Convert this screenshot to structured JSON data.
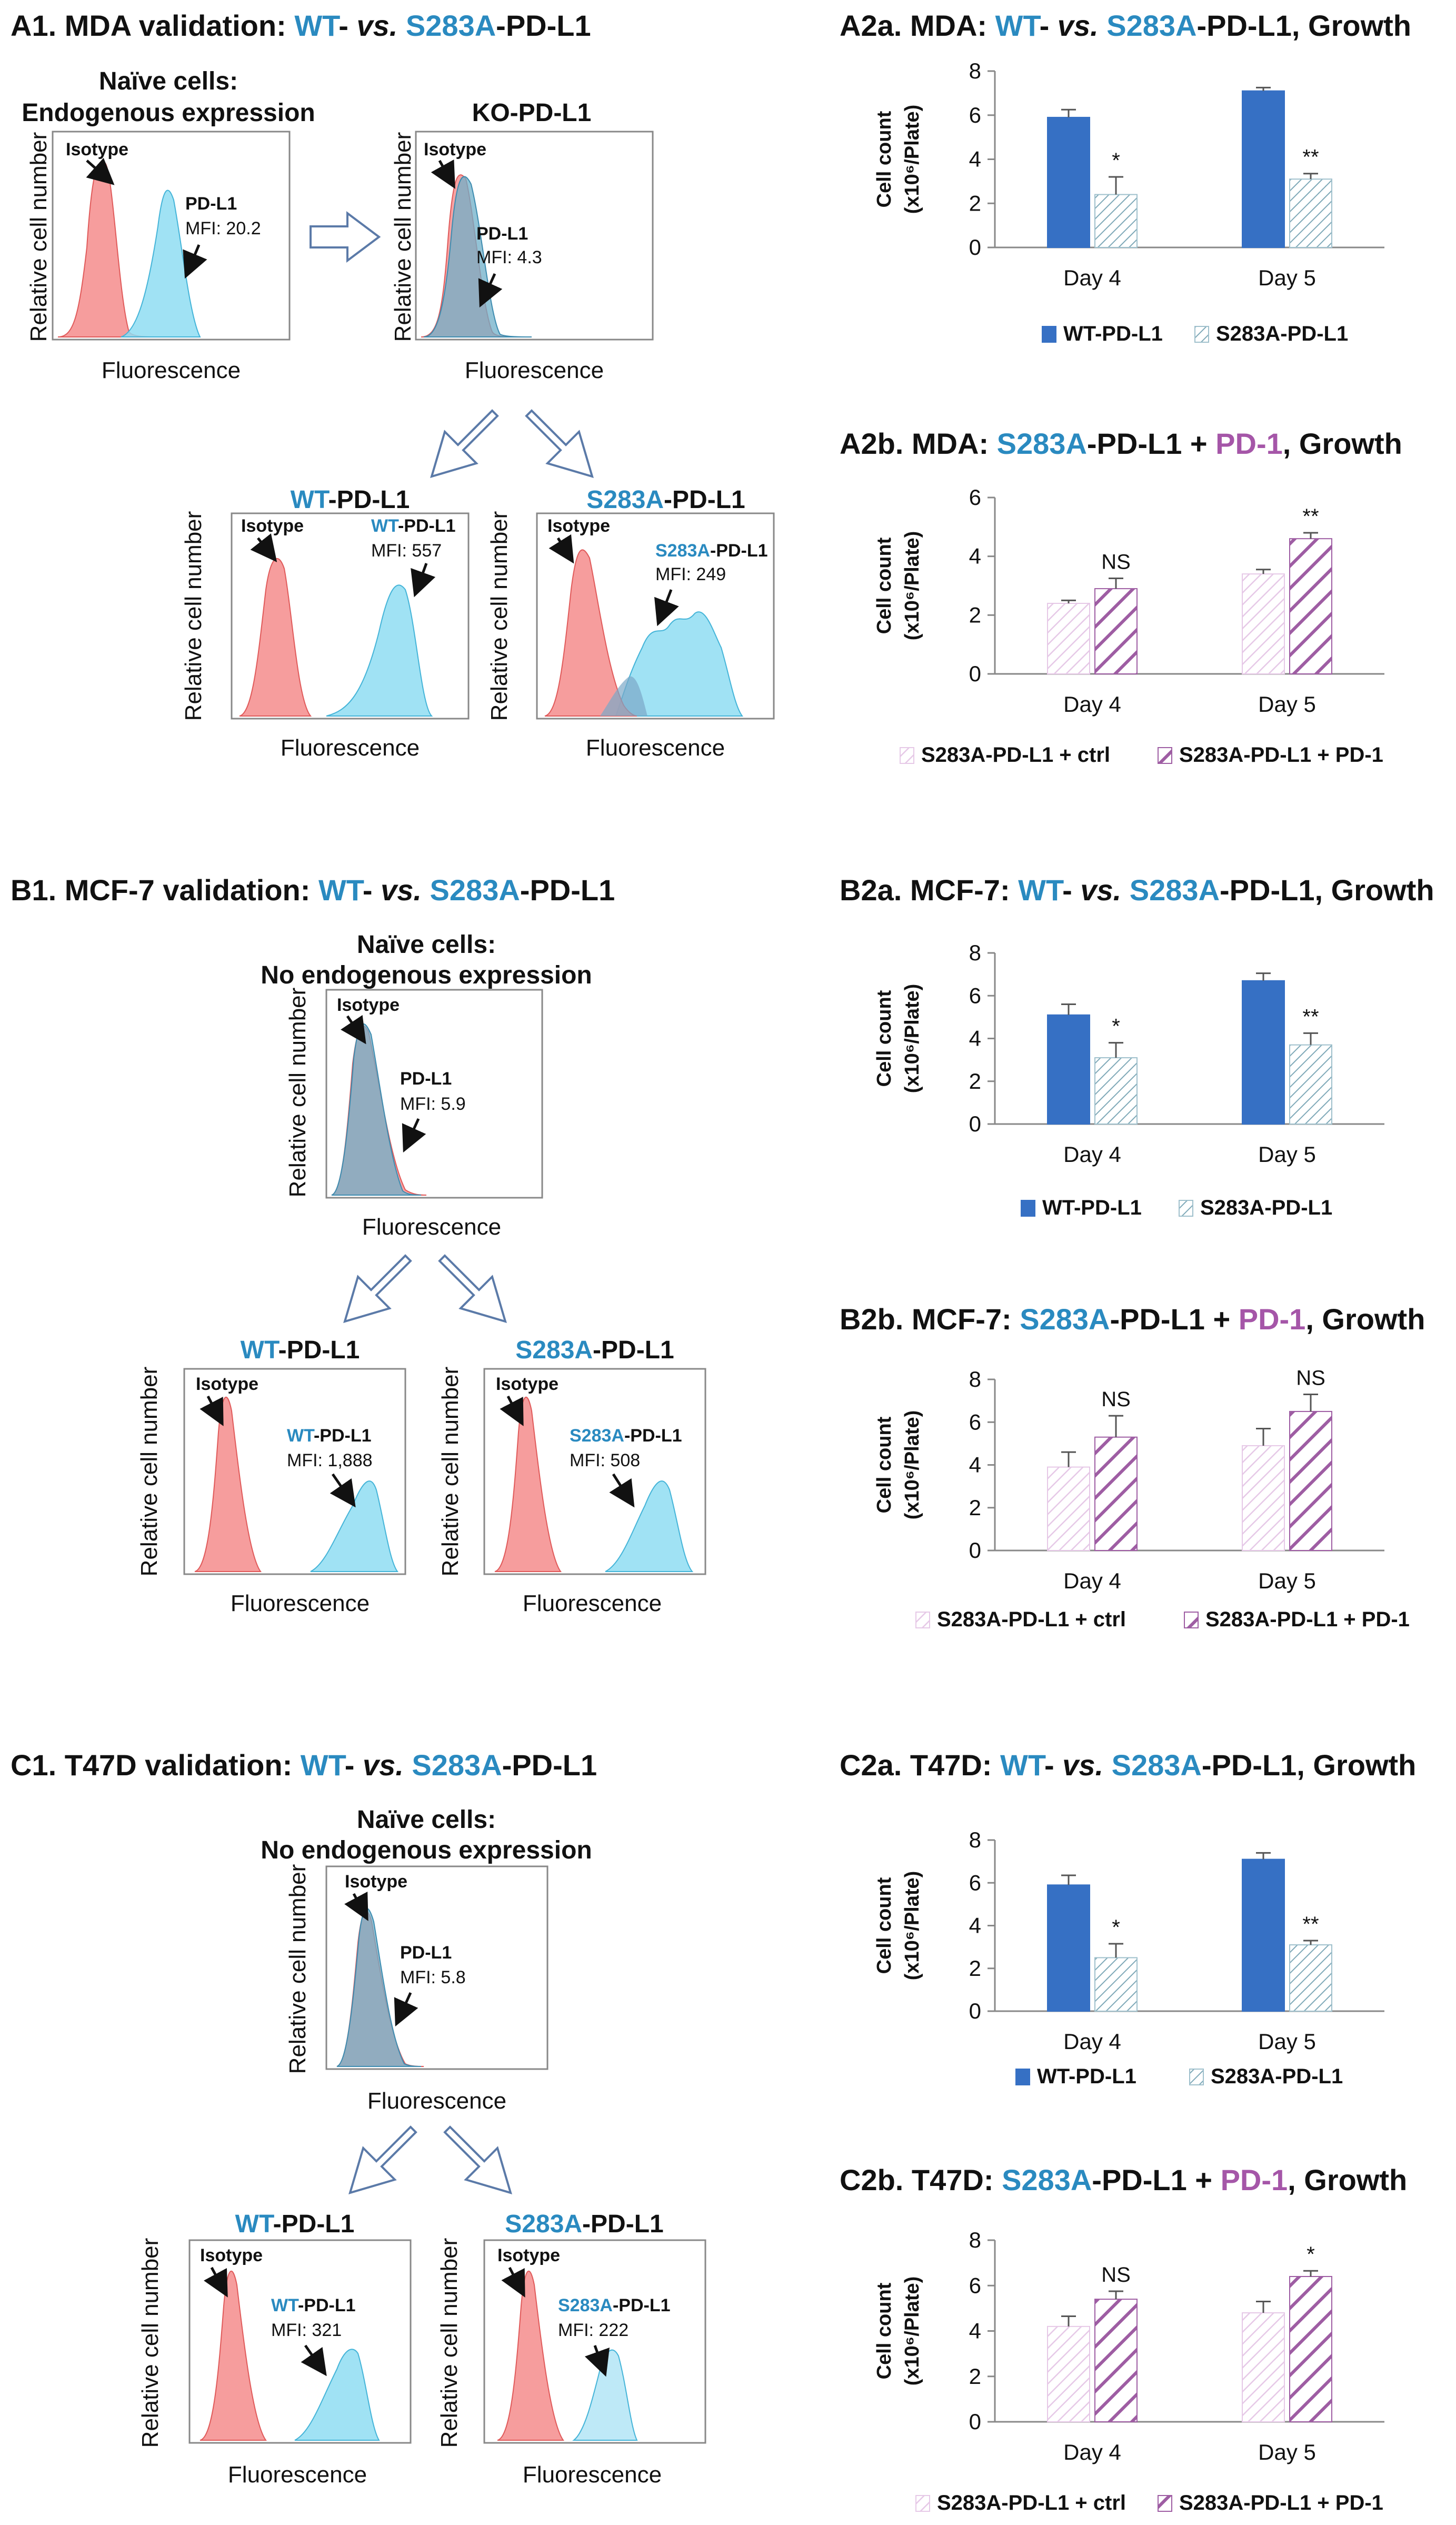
{
  "titles": {
    "A1": {
      "prefix": "A1. MDA validation: ",
      "wt": "WT",
      "mid": "- ",
      "vs": "vs.",
      "s283a": " S283A",
      "suffix": "-PD-L1"
    },
    "B1": {
      "prefix": "B1. MCF-7 validation: ",
      "wt": "WT",
      "mid": "- ",
      "vs": "vs.",
      "s283a": " S283A",
      "suffix": "-PD-L1"
    },
    "C1": {
      "prefix": "C1. T47D validation: ",
      "wt": "WT",
      "mid": "- ",
      "vs": "vs.",
      "s283a": " S283A",
      "suffix": "-PD-L1"
    }
  },
  "flow": {
    "A": {
      "naive_title1": "Naïve cells:",
      "naive_title2": "Endogenous expression",
      "ko_title": "KO-PD-L1",
      "naive_pdl1": "PD-L1",
      "naive_mfi": "MFI: 20.2",
      "ko_pdl1": "PD-L1",
      "ko_mfi": "MFI: 4.3",
      "wt_title_a": "WT",
      "wt_title_b": "-PD-L1",
      "s_title_a": "S283A",
      "s_title_b": "-PD-L1",
      "wt_label_a": "WT",
      "wt_label_b": "-PD-L1",
      "wt_mfi": "MFI: 557",
      "s_label_a": "S283A",
      "s_label_b": "-PD-L1",
      "s_mfi": "MFI: 249"
    },
    "B": {
      "naive_title1": "Naïve cells:",
      "naive_title2": "No endogenous expression",
      "naive_pdl1": "PD-L1",
      "naive_mfi": "MFI: 5.9",
      "wt_title_a": "WT",
      "wt_title_b": "-PD-L1",
      "s_title_a": "S283A",
      "s_title_b": "-PD-L1",
      "wt_label_a": "WT",
      "wt_label_b": "-PD-L1",
      "wt_mfi": "MFI: 1,888",
      "s_label_a": "S283A",
      "s_label_b": "-PD-L1",
      "s_mfi": "MFI: 508"
    },
    "C": {
      "naive_title1": "Naïve cells:",
      "naive_title2": "No endogenous expression",
      "naive_pdl1": "PD-L1",
      "naive_mfi": "MFI: 5.8",
      "wt_title_a": "WT",
      "wt_title_b": "-PD-L1",
      "s_title_a": "S283A",
      "s_title_b": "-PD-L1",
      "wt_label_a": "WT",
      "wt_label_b": "-PD-L1",
      "wt_mfi": "MFI: 321",
      "s_label_a": "S283A",
      "s_label_b": "-PD-L1",
      "s_mfi": "MFI: 222"
    },
    "common": {
      "isotype": "Isotype",
      "xlabel": "Fluorescence",
      "ylabel": "Relative cell number"
    }
  },
  "colors": {
    "wt_blue": "#3670C4",
    "s283a_teal": "#2A8AC0",
    "pd1_purple": "#A556A8",
    "isotype_red": "#F07C7C",
    "pdl1_cyan": "#7DD6EE"
  },
  "chart_data": [
    {
      "id": "A2a",
      "type": "bar",
      "title": {
        "prefix": "A2a. MDA: ",
        "a": "WT",
        "b": "- ",
        "c": "vs.",
        "d": " S283A",
        "e": "-PD-L1, Growth"
      },
      "categories": [
        "Day 4",
        "Day 5"
      ],
      "ylabel_1": "Cell count",
      "ylabel_2": "(x10⁶/Plate)",
      "ylim": [
        0,
        8
      ],
      "yticks": [
        "0",
        "2",
        "4",
        "6",
        "8"
      ],
      "series": [
        {
          "name": "WT-PD-L1",
          "values": [
            5.9,
            7.1
          ],
          "errors": [
            0.35,
            0.15
          ]
        },
        {
          "name": "S283A-PD-L1",
          "values": [
            2.4,
            3.1
          ],
          "errors": [
            0.8,
            0.25
          ]
        }
      ],
      "significance": [
        "*",
        "**"
      ]
    },
    {
      "id": "A2b",
      "type": "bar",
      "title": {
        "prefix": "A2b. MDA: ",
        "a": "S283A",
        "b": "-PD-L1 + ",
        "c": "PD-1",
        "d": ", Growth"
      },
      "categories": [
        "Day 4",
        "Day 5"
      ],
      "ylabel_1": "Cell count",
      "ylabel_2": "(x10⁶/Plate)",
      "ylim": [
        0,
        6
      ],
      "yticks": [
        "0",
        "2",
        "4",
        "6"
      ],
      "series": [
        {
          "name": "S283A-PD-L1 + ctrl",
          "values": [
            2.4,
            3.4
          ],
          "errors": [
            0.1,
            0.15
          ]
        },
        {
          "name": "S283A-PD-L1 + PD-1",
          "values": [
            2.9,
            4.6
          ],
          "errors": [
            0.35,
            0.2
          ]
        }
      ],
      "significance": [
        "NS",
        "**"
      ]
    },
    {
      "id": "B2a",
      "type": "bar",
      "title": {
        "prefix": "B2a. MCF-7: ",
        "a": "WT",
        "b": "- ",
        "c": "vs.",
        "d": " S283A",
        "e": "-PD-L1, Growth"
      },
      "categories": [
        "Day 4",
        "Day 5"
      ],
      "ylabel_1": "Cell count",
      "ylabel_2": "(x10⁶/Plate)",
      "ylim": [
        0,
        8
      ],
      "yticks": [
        "0",
        "2",
        "4",
        "6",
        "8"
      ],
      "series": [
        {
          "name": "WT-PD-L1",
          "values": [
            5.1,
            6.7
          ],
          "errors": [
            0.5,
            0.35
          ]
        },
        {
          "name": "S283A-PD-L1",
          "values": [
            3.1,
            3.7
          ],
          "errors": [
            0.7,
            0.55
          ]
        }
      ],
      "significance": [
        "*",
        "**"
      ]
    },
    {
      "id": "B2b",
      "type": "bar",
      "title": {
        "prefix": "B2b. MCF-7: ",
        "a": "S283A",
        "b": "-PD-L1 + ",
        "c": "PD-1",
        "d": ", Growth"
      },
      "categories": [
        "Day 4",
        "Day 5"
      ],
      "ylabel_1": "Cell count",
      "ylabel_2": "(x10⁶/Plate)",
      "ylim": [
        0,
        8
      ],
      "yticks": [
        "0",
        "2",
        "4",
        "6",
        "8"
      ],
      "series": [
        {
          "name": "S283A-PD-L1 + ctrl",
          "values": [
            3.9,
            4.9
          ],
          "errors": [
            0.7,
            0.8
          ]
        },
        {
          "name": "S283A-PD-L1 + PD-1",
          "values": [
            5.3,
            6.5
          ],
          "errors": [
            1.0,
            0.8
          ]
        }
      ],
      "significance": [
        "NS",
        "NS"
      ]
    },
    {
      "id": "C2a",
      "type": "bar",
      "title": {
        "prefix": "C2a. T47D: ",
        "a": "WT",
        "b": "- ",
        "c": "vs.",
        "d": " S283A",
        "e": "-PD-L1, Growth"
      },
      "categories": [
        "Day 4",
        "Day 5"
      ],
      "ylabel_1": "Cell count",
      "ylabel_2": "(x10⁶/Plate)",
      "ylim": [
        0,
        8
      ],
      "yticks": [
        "0",
        "2",
        "4",
        "6",
        "8"
      ],
      "series": [
        {
          "name": "WT-PD-L1",
          "values": [
            5.9,
            7.1
          ],
          "errors": [
            0.45,
            0.3
          ]
        },
        {
          "name": "S283A-PD-L1",
          "values": [
            2.5,
            3.1
          ],
          "errors": [
            0.65,
            0.2
          ]
        }
      ],
      "significance": [
        "*",
        "**"
      ]
    },
    {
      "id": "C2b",
      "type": "bar",
      "title": {
        "prefix": "C2b. T47D: ",
        "a": "S283A",
        "b": "-PD-L1 + ",
        "c": "PD-1",
        "d": ", Growth"
      },
      "categories": [
        "Day 4",
        "Day 5"
      ],
      "ylabel_1": "Cell count",
      "ylabel_2": "(x10⁶/Plate)",
      "ylim": [
        0,
        8
      ],
      "yticks": [
        "0",
        "2",
        "4",
        "6",
        "8"
      ],
      "series": [
        {
          "name": "S283A-PD-L1 + ctrl",
          "values": [
            4.2,
            4.8
          ],
          "errors": [
            0.45,
            0.5
          ]
        },
        {
          "name": "S283A-PD-L1 + PD-1",
          "values": [
            5.4,
            6.4
          ],
          "errors": [
            0.35,
            0.25
          ]
        }
      ],
      "significance": [
        "NS",
        "*"
      ]
    }
  ]
}
